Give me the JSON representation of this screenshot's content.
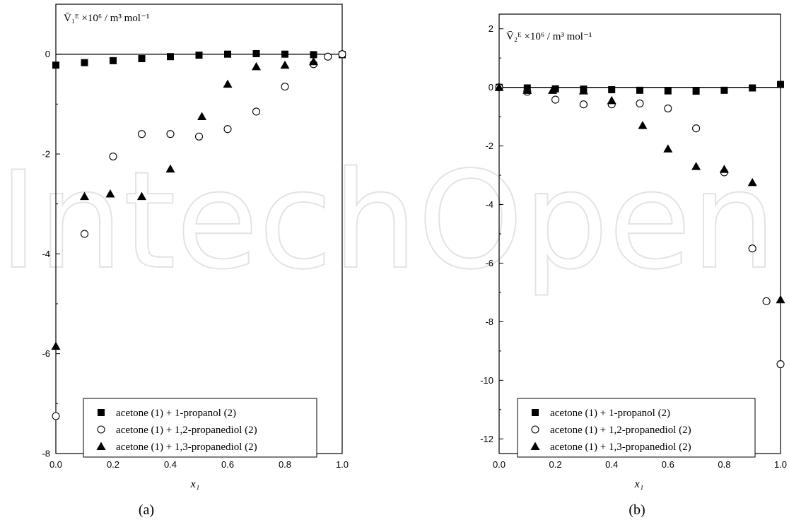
{
  "watermark": "IntechOpen",
  "chart_data": [
    {
      "type": "scatter",
      "panel_label": "(a)",
      "ylabel": "V̄₁ᴱ ×10⁶ / m³ mol⁻¹",
      "xlabel": "x₁",
      "xlim": [
        0.0,
        1.0
      ],
      "ylim": [
        -8,
        1
      ],
      "xticks": [
        "0.0",
        "0.2",
        "0.4",
        "0.6",
        "0.8",
        "1.0"
      ],
      "yticks": [
        "0",
        "-2",
        "-4",
        "-6",
        "-8"
      ],
      "zero_line": true,
      "grid": false,
      "legend_position": "bottom",
      "series": [
        {
          "name": "acetone (1) + 1-propanol (2)",
          "marker": "filled-square",
          "x": [
            0.0,
            0.1,
            0.2,
            0.3,
            0.4,
            0.5,
            0.6,
            0.7,
            0.8,
            0.9,
            1.0
          ],
          "y": [
            -0.22,
            -0.17,
            -0.13,
            -0.09,
            -0.05,
            -0.02,
            0.0,
            0.01,
            0.0,
            -0.01,
            -0.01
          ]
        },
        {
          "name": "acetone (1) + 1,2-propanediol (2)",
          "marker": "open-circle",
          "x": [
            0.0,
            0.1,
            0.2,
            0.3,
            0.4,
            0.5,
            0.6,
            0.7,
            0.8,
            0.9,
            0.95,
            1.0
          ],
          "y": [
            -7.25,
            -3.6,
            -2.05,
            -1.6,
            -1.6,
            -1.65,
            -1.5,
            -1.15,
            -0.65,
            -0.2,
            -0.05,
            0.0
          ]
        },
        {
          "name": "acetone (1) + 1,3-propanediol (2)",
          "marker": "filled-triangle",
          "x": [
            0.0,
            0.1,
            0.19,
            0.3,
            0.4,
            0.51,
            0.6,
            0.7,
            0.8,
            0.9
          ],
          "y": [
            -5.85,
            -2.85,
            -2.8,
            -2.85,
            -2.3,
            -1.25,
            -0.6,
            -0.25,
            -0.22,
            -0.15
          ]
        }
      ]
    },
    {
      "type": "scatter",
      "panel_label": "(b)",
      "ylabel": "V̄₂ᴱ ×10⁶ / m³ mol⁻¹",
      "xlabel": "x₁",
      "xlim": [
        0.0,
        1.0
      ],
      "ylim": [
        -12.5,
        2.5
      ],
      "xticks": [
        "0.0",
        "0.2",
        "0.4",
        "0.6",
        "0.8",
        "1.0"
      ],
      "yticks": [
        "2",
        "0",
        "-2",
        "-4",
        "-6",
        "-8",
        "-10",
        "-12"
      ],
      "zero_line": true,
      "grid": false,
      "legend_position": "bottom",
      "series": [
        {
          "name": "acetone (1) + 1-propanol (2)",
          "marker": "filled-square",
          "x": [
            0.0,
            0.1,
            0.2,
            0.3,
            0.4,
            0.5,
            0.6,
            0.7,
            0.8,
            0.9,
            1.0
          ],
          "y": [
            0.0,
            -0.02,
            -0.05,
            -0.06,
            -0.08,
            -0.1,
            -0.12,
            -0.13,
            -0.1,
            -0.02,
            0.1
          ]
        },
        {
          "name": "acetone (1) + 1,2-propanediol (2)",
          "marker": "open-circle",
          "x": [
            0.0,
            0.1,
            0.2,
            0.3,
            0.4,
            0.5,
            0.6,
            0.7,
            0.8,
            0.9,
            0.95,
            1.0
          ],
          "y": [
            0.0,
            -0.15,
            -0.42,
            -0.58,
            -0.58,
            -0.55,
            -0.72,
            -1.4,
            -2.9,
            -5.5,
            -7.3,
            -9.45
          ]
        },
        {
          "name": "acetone (1) + 1,3-propanediol (2)",
          "marker": "filled-triangle",
          "x": [
            0.0,
            0.1,
            0.19,
            0.3,
            0.4,
            0.51,
            0.6,
            0.7,
            0.8,
            0.9,
            1.0
          ],
          "y": [
            0.0,
            -0.1,
            -0.1,
            -0.12,
            -0.45,
            -1.3,
            -2.1,
            -2.7,
            -2.8,
            -3.25,
            -7.25
          ]
        }
      ]
    }
  ]
}
